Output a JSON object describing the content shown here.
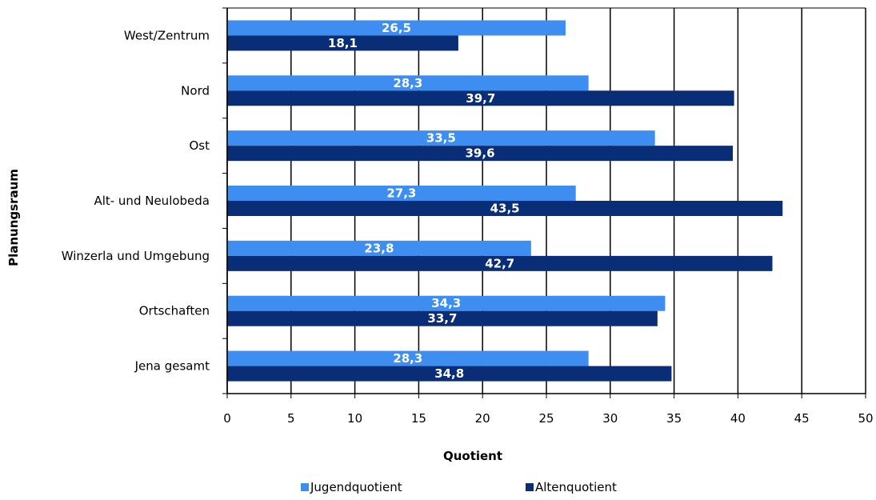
{
  "chart_data": {
    "type": "bar",
    "orientation": "horizontal",
    "categories": [
      "West/Zentrum",
      "Nord",
      "Ost",
      "Alt- und Neulobeda",
      "Winzerla und Umgebung",
      "Ortschaften",
      "Jena gesamt"
    ],
    "series": [
      {
        "name": "Jugendquotient",
        "values": [
          26.5,
          28.3,
          33.5,
          27.3,
          23.8,
          34.3,
          28.3
        ],
        "labels": [
          "26,5",
          "28,3",
          "33,5",
          "27,3",
          "23,8",
          "34,3",
          "28,3"
        ],
        "color": "#3d8ef0"
      },
      {
        "name": "Altenquotient",
        "values": [
          18.1,
          39.7,
          39.6,
          43.5,
          42.7,
          33.7,
          34.8
        ],
        "labels": [
          "18,1",
          "39,7",
          "39,6",
          "43,5",
          "42,7",
          "33,7",
          "34,8"
        ],
        "color": "#0a2d78"
      }
    ],
    "xlabel": "Quotient",
    "ylabel": "Planungsraum",
    "xlim": [
      0,
      50
    ],
    "xticks": [
      0,
      5,
      10,
      15,
      20,
      25,
      30,
      35,
      40,
      45,
      50
    ],
    "grid": true,
    "legend_position": "bottom"
  }
}
